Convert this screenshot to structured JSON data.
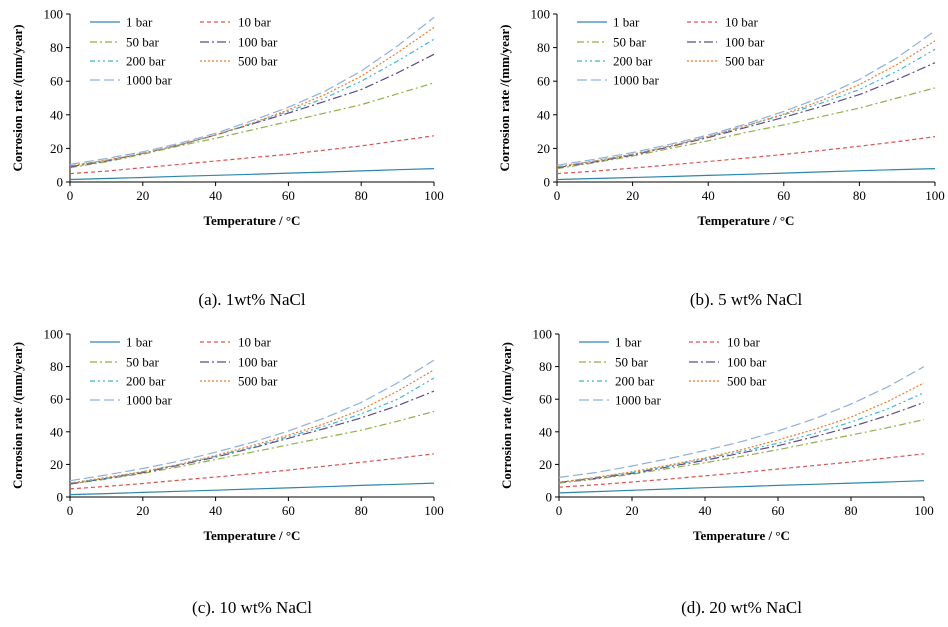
{
  "figure": {
    "captions": [
      "(a).  1wt% NaCl",
      "(b).  5 wt% NaCl",
      "(c).  10 wt% NaCl",
      "(d).  20 wt% NaCl"
    ]
  },
  "colors": {
    "1 bar": "#2e86a8",
    "10 bar": "#d9534f",
    "50 bar": "#8fb04a",
    "100 bar": "#5e4a8a",
    "200 bar": "#3fb6d6",
    "500 bar": "#f07c24",
    "1000 bar": "#8fb0dc"
  },
  "chart_data": [
    {
      "type": "line",
      "title": "",
      "xlabel": "Temperature  / °C",
      "ylabel": "Corrosion rate  /(mm/year)",
      "xlim": [
        0,
        100
      ],
      "ylim": [
        0,
        100
      ],
      "xticks": [
        0,
        20,
        40,
        60,
        80,
        100
      ],
      "yticks": [
        0,
        20,
        40,
        60,
        80,
        100
      ],
      "grid": false,
      "legend": "top-left",
      "x": [
        0,
        10,
        20,
        30,
        40,
        50,
        60,
        70,
        80,
        90,
        100
      ],
      "series": [
        {
          "name": "1 bar",
          "values": [
            1.5,
            2.1,
            2.7,
            3.4,
            4.0,
            4.6,
            5.3,
            5.9,
            6.6,
            7.3,
            8.0
          ]
        },
        {
          "name": "10 bar",
          "values": [
            5.0,
            6.5,
            8.5,
            10.5,
            12.5,
            14.5,
            16.5,
            19.0,
            21.5,
            24.5,
            27.5
          ]
        },
        {
          "name": "50 bar",
          "values": [
            8.5,
            12.0,
            16.5,
            21.5,
            26.0,
            31.0,
            36.0,
            41.0,
            46.0,
            52.5,
            59.0
          ]
        },
        {
          "name": "100 bar",
          "values": [
            9.0,
            12.5,
            17.0,
            22.0,
            28.0,
            34.5,
            41.0,
            48.0,
            55.0,
            65.0,
            76.0
          ]
        },
        {
          "name": "200 bar",
          "values": [
            9.5,
            13.0,
            17.0,
            22.0,
            28.0,
            35.0,
            42.0,
            50.0,
            60.0,
            72.0,
            85.0
          ]
        },
        {
          "name": "500 bar",
          "values": [
            9.5,
            13.0,
            17.0,
            22.0,
            28.0,
            35.0,
            43.0,
            52.0,
            63.0,
            77.0,
            92.0
          ]
        },
        {
          "name": "1000 bar",
          "values": [
            10.5,
            14.0,
            18.0,
            23.0,
            29.0,
            36.5,
            44.5,
            54.0,
            66.0,
            81.0,
            98.0
          ]
        }
      ]
    },
    {
      "type": "line",
      "title": "",
      "xlabel": "Temperature  / °C",
      "ylabel": "Corrosion rate  /(mm/year)",
      "xlim": [
        0,
        100
      ],
      "ylim": [
        0,
        100
      ],
      "xticks": [
        0,
        20,
        40,
        60,
        80,
        100
      ],
      "yticks": [
        0,
        20,
        40,
        60,
        80,
        100
      ],
      "grid": false,
      "legend": "top-left",
      "x": [
        0,
        10,
        20,
        30,
        40,
        50,
        60,
        70,
        80,
        90,
        100
      ],
      "series": [
        {
          "name": "1 bar",
          "values": [
            1.5,
            2.1,
            2.7,
            3.3,
            3.9,
            4.6,
            5.3,
            6.0,
            6.7,
            7.4,
            8.0
          ]
        },
        {
          "name": "10 bar",
          "values": [
            5.0,
            6.5,
            8.3,
            10.2,
            12.2,
            14.2,
            16.4,
            18.8,
            21.3,
            24.0,
            27.0
          ]
        },
        {
          "name": "50 bar",
          "values": [
            8.0,
            11.5,
            15.5,
            20.0,
            24.5,
            29.5,
            34.0,
            39.0,
            44.0,
            50.0,
            56.0
          ]
        },
        {
          "name": "100 bar",
          "values": [
            8.5,
            12.0,
            16.0,
            21.0,
            26.5,
            32.5,
            38.5,
            45.0,
            52.0,
            61.0,
            71.0
          ]
        },
        {
          "name": "200 bar",
          "values": [
            9.0,
            12.5,
            16.5,
            21.5,
            27.0,
            33.5,
            40.0,
            47.0,
            55.0,
            66.0,
            79.0
          ]
        },
        {
          "name": "500 bar",
          "values": [
            9.0,
            12.5,
            16.5,
            21.5,
            27.0,
            33.5,
            40.5,
            48.5,
            58.0,
            70.0,
            84.0
          ]
        },
        {
          "name": "1000 bar",
          "values": [
            10.0,
            13.5,
            17.5,
            22.5,
            28.0,
            34.5,
            42.0,
            50.5,
            61.0,
            74.0,
            90.0
          ]
        }
      ]
    },
    {
      "type": "line",
      "title": "",
      "xlabel": "Temperature  / °C",
      "ylabel": "Corrosion rate  /(mm/year)",
      "xlim": [
        0,
        100
      ],
      "ylim": [
        0,
        100
      ],
      "xticks": [
        0,
        20,
        40,
        60,
        80,
        100
      ],
      "yticks": [
        0,
        20,
        40,
        60,
        80,
        100
      ],
      "grid": false,
      "legend": "top-left",
      "x": [
        0,
        10,
        20,
        30,
        40,
        50,
        60,
        70,
        80,
        90,
        100
      ],
      "series": [
        {
          "name": "1 bar",
          "values": [
            1.5,
            2.1,
            2.8,
            3.5,
            4.2,
            4.9,
            5.6,
            6.3,
            7.1,
            7.8,
            8.5
          ]
        },
        {
          "name": "10 bar",
          "values": [
            5.0,
            6.5,
            8.3,
            10.3,
            12.3,
            14.3,
            16.5,
            18.9,
            21.3,
            23.8,
            26.5
          ]
        },
        {
          "name": "50 bar",
          "values": [
            8.0,
            11.0,
            14.5,
            18.5,
            23.0,
            27.5,
            32.0,
            36.5,
            41.0,
            46.5,
            52.5
          ]
        },
        {
          "name": "100 bar",
          "values": [
            8.0,
            11.5,
            15.0,
            19.5,
            24.5,
            30.0,
            36.0,
            42.0,
            48.5,
            56.0,
            65.0
          ]
        },
        {
          "name": "200 bar",
          "values": [
            8.5,
            11.5,
            15.5,
            20.0,
            25.0,
            30.5,
            37.0,
            43.5,
            51.0,
            60.0,
            73.0
          ]
        },
        {
          "name": "500 bar",
          "values": [
            8.5,
            12.0,
            15.5,
            20.0,
            25.5,
            31.5,
            38.0,
            45.0,
            53.5,
            65.0,
            78.0
          ]
        },
        {
          "name": "1000 bar",
          "values": [
            10.0,
            13.5,
            17.5,
            22.0,
            27.5,
            33.5,
            40.5,
            48.5,
            58.0,
            70.0,
            84.0
          ]
        }
      ]
    },
    {
      "type": "line",
      "title": "",
      "xlabel": "Temperature  / °C",
      "ylabel": "Corrosion rate  /(mm/year)",
      "xlim": [
        0,
        100
      ],
      "ylim": [
        0,
        100
      ],
      "xticks": [
        0,
        20,
        40,
        60,
        80,
        100
      ],
      "yticks": [
        0,
        20,
        40,
        60,
        80,
        100
      ],
      "grid": false,
      "legend": "top-left",
      "x": [
        0,
        10,
        20,
        30,
        40,
        50,
        60,
        70,
        80,
        90,
        100
      ],
      "series": [
        {
          "name": "1 bar",
          "values": [
            2.5,
            3.3,
            4.1,
            4.9,
            5.7,
            6.4,
            7.1,
            7.8,
            8.5,
            9.2,
            10.0
          ]
        },
        {
          "name": "10 bar",
          "values": [
            6.0,
            7.5,
            9.2,
            11.0,
            13.0,
            15.0,
            17.2,
            19.3,
            21.5,
            24.0,
            26.5
          ]
        },
        {
          "name": "50 bar",
          "values": [
            8.5,
            11.0,
            14.0,
            17.5,
            21.0,
            25.0,
            29.0,
            33.5,
            38.0,
            42.5,
            47.5
          ]
        },
        {
          "name": "100 bar",
          "values": [
            9.0,
            11.5,
            14.5,
            18.5,
            22.5,
            27.0,
            31.5,
            37.0,
            43.0,
            50.0,
            58.0
          ]
        },
        {
          "name": "200 bar",
          "values": [
            9.0,
            12.0,
            15.0,
            19.0,
            23.5,
            28.0,
            33.0,
            39.0,
            46.0,
            54.0,
            64.0
          ]
        },
        {
          "name": "500 bar",
          "values": [
            9.0,
            12.0,
            15.5,
            19.5,
            24.0,
            29.0,
            35.0,
            41.5,
            49.0,
            58.5,
            70.0
          ]
        },
        {
          "name": "1000 bar",
          "values": [
            12.0,
            15.0,
            19.0,
            23.5,
            28.5,
            34.0,
            40.5,
            48.0,
            57.0,
            67.5,
            80.0
          ]
        }
      ]
    }
  ]
}
